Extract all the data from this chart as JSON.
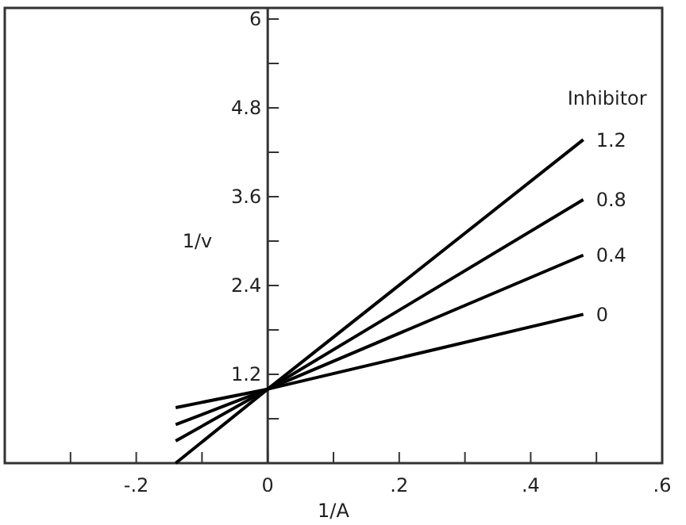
{
  "chart_data": {
    "type": "line",
    "xlabel": "1/A",
    "ylabel": "1/v",
    "legend_title": "Inhibitor",
    "xlim": [
      -0.4,
      0.6
    ],
    "ylim": [
      0,
      6.15
    ],
    "xticks": [
      {
        "value": -0.3,
        "label": null
      },
      {
        "value": -0.2,
        "label": "-.2"
      },
      {
        "value": -0.1,
        "label": null
      },
      {
        "value": 0,
        "label": "0"
      },
      {
        "value": 0.1,
        "label": null
      },
      {
        "value": 0.2,
        "label": ".2"
      },
      {
        "value": 0.3,
        "label": null
      },
      {
        "value": 0.4,
        "label": ".4"
      },
      {
        "value": 0.5,
        "label": null
      },
      {
        "value": 0.6,
        "label": ".6"
      }
    ],
    "yticks": [
      {
        "value": 0.6,
        "label": null
      },
      1.2,
      {
        "value": 1.8,
        "label": null
      },
      2.4,
      {
        "value": 3,
        "label": null
      },
      3.6,
      {
        "value": 4.2,
        "label": null
      },
      4.8,
      {
        "value": 5.4,
        "label": null
      },
      6
    ],
    "x": [
      -0.14,
      0,
      0.48
    ],
    "series": [
      {
        "name": "1.2",
        "color": "#000000",
        "values": [
          0.0,
          1.0,
          4.37
        ]
      },
      {
        "name": "0.8",
        "color": "#000000",
        "values": [
          0.3,
          1.0,
          3.56
        ]
      },
      {
        "name": "0.4",
        "color": "#000000",
        "values": [
          0.52,
          1.0,
          2.81
        ]
      },
      {
        "name": "0",
        "color": "#000000",
        "values": [
          0.75,
          1.0,
          2.01
        ]
      }
    ],
    "marker": "none",
    "line_style": "solid",
    "grid": false
  }
}
